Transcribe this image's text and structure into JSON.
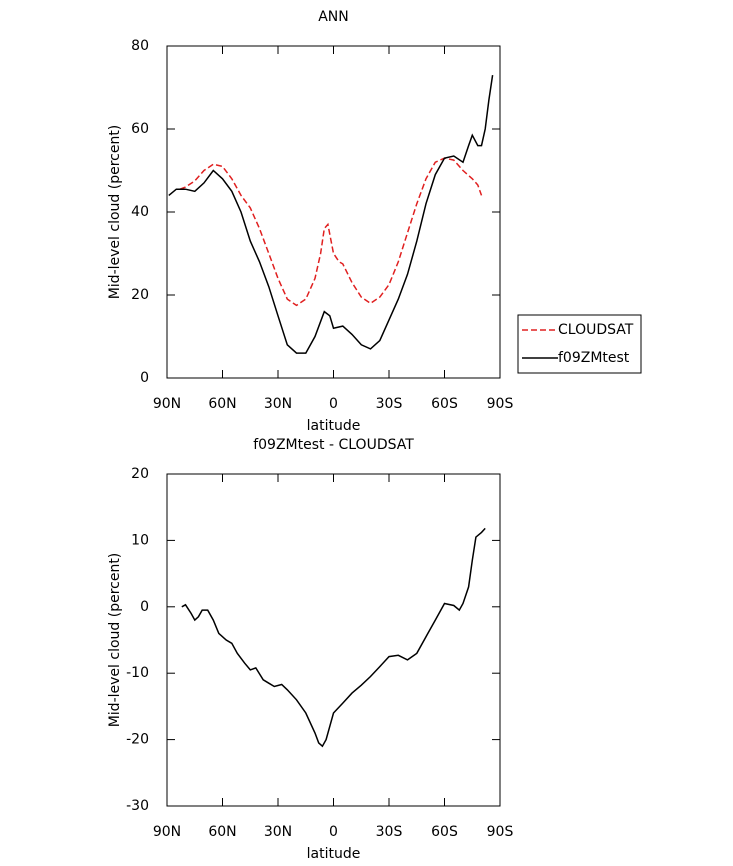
{
  "chart_data": [
    {
      "type": "line",
      "title": "ANN",
      "xlabel": "latitude",
      "ylabel": "Mid-level cloud (percent)",
      "xlim": [
        90,
        -90
      ],
      "ylim": [
        0,
        80
      ],
      "xticks": [
        {
          "value": 90,
          "label": "90N"
        },
        {
          "value": 60,
          "label": "60N"
        },
        {
          "value": 30,
          "label": "30N"
        },
        0,
        {
          "value": -30,
          "label": "30S"
        },
        {
          "value": -60,
          "label": "60S"
        },
        {
          "value": -90,
          "label": "90S"
        }
      ],
      "yticks": [
        0,
        20,
        40,
        60,
        80
      ],
      "legend": "right",
      "series": [
        {
          "name": "CLOUDSAT",
          "color": "#e02020",
          "dash": true,
          "x": [
            83,
            80,
            75,
            70,
            65,
            60,
            55,
            50,
            45,
            40,
            35,
            30,
            25,
            20,
            15,
            10,
            7,
            5,
            3,
            0,
            -3,
            -5,
            -10,
            -15,
            -20,
            -25,
            -30,
            -35,
            -40,
            -45,
            -50,
            -55,
            -60,
            -65,
            -70,
            -75,
            -78,
            -80
          ],
          "values": [
            45.5,
            46,
            47.5,
            50,
            51.5,
            51,
            48,
            44,
            41,
            36,
            30,
            24,
            19,
            17.5,
            19,
            24,
            30,
            36,
            37,
            30,
            28,
            27.5,
            23,
            19.5,
            18,
            19.5,
            22.5,
            28,
            35,
            42,
            48,
            52,
            53,
            52.5,
            50,
            48,
            46.5,
            44
          ]
        },
        {
          "name": "f09ZMtest",
          "color": "#000000",
          "dash": false,
          "x": [
            89,
            85,
            80,
            75,
            70,
            65,
            60,
            55,
            50,
            45,
            40,
            35,
            30,
            25,
            20,
            15,
            10,
            5,
            2,
            0,
            -5,
            -10,
            -15,
            -20,
            -25,
            -30,
            -35,
            -40,
            -45,
            -50,
            -55,
            -60,
            -65,
            -70,
            -73,
            -75,
            -78,
            -80,
            -82,
            -84,
            -86
          ],
          "values": [
            44,
            45.5,
            45.5,
            45,
            47,
            50,
            48,
            45,
            40,
            33,
            28,
            22,
            15,
            8,
            6,
            6,
            10,
            16,
            15,
            12,
            12.5,
            10.5,
            8,
            7,
            9,
            14,
            19,
            25,
            33,
            42,
            49,
            53,
            53.5,
            52,
            56,
            58.5,
            56,
            56,
            60,
            67,
            73
          ]
        }
      ]
    },
    {
      "type": "line",
      "title": "f09ZMtest - CLOUDSAT",
      "xlabel": "latitude",
      "ylabel": "Mid-level cloud (percent)",
      "xlim": [
        90,
        -90
      ],
      "ylim": [
        -30,
        20
      ],
      "xticks": [
        {
          "value": 90,
          "label": "90N"
        },
        {
          "value": 60,
          "label": "60N"
        },
        {
          "value": 30,
          "label": "30N"
        },
        0,
        {
          "value": -30,
          "label": "30S"
        },
        {
          "value": -60,
          "label": "60S"
        },
        {
          "value": -90,
          "label": "90S"
        }
      ],
      "yticks": [
        -30,
        -20,
        -10,
        0,
        10,
        20
      ],
      "series": [
        {
          "color": "#000000",
          "dash": false,
          "x": [
            82,
            80,
            77,
            75,
            73,
            71,
            68,
            65,
            62,
            58,
            55,
            52,
            48,
            45,
            42,
            38,
            35,
            32,
            28,
            25,
            20,
            15,
            10,
            8,
            6,
            4,
            2,
            0,
            -5,
            -10,
            -15,
            -20,
            -25,
            -30,
            -35,
            -40,
            -45,
            -50,
            -55,
            -60,
            -65,
            -68,
            -70,
            -73,
            -75,
            -77,
            -80,
            -82
          ],
          "values": [
            0,
            0.3,
            -1,
            -2,
            -1.5,
            -0.5,
            -0.5,
            -2,
            -4,
            -5,
            -5.5,
            -7,
            -8.5,
            -9.5,
            -9.2,
            -11,
            -11.5,
            -12,
            -11.7,
            -12.5,
            -14,
            -16,
            -19,
            -20.5,
            -21,
            -20,
            -18,
            -16,
            -14.5,
            -13,
            -11.8,
            -10.5,
            -9,
            -7.5,
            -7.3,
            -8,
            -7,
            -4.5,
            -2,
            0.5,
            0.2,
            -0.5,
            0.5,
            3,
            7,
            10.5,
            11.2,
            11.8
          ]
        }
      ]
    }
  ]
}
